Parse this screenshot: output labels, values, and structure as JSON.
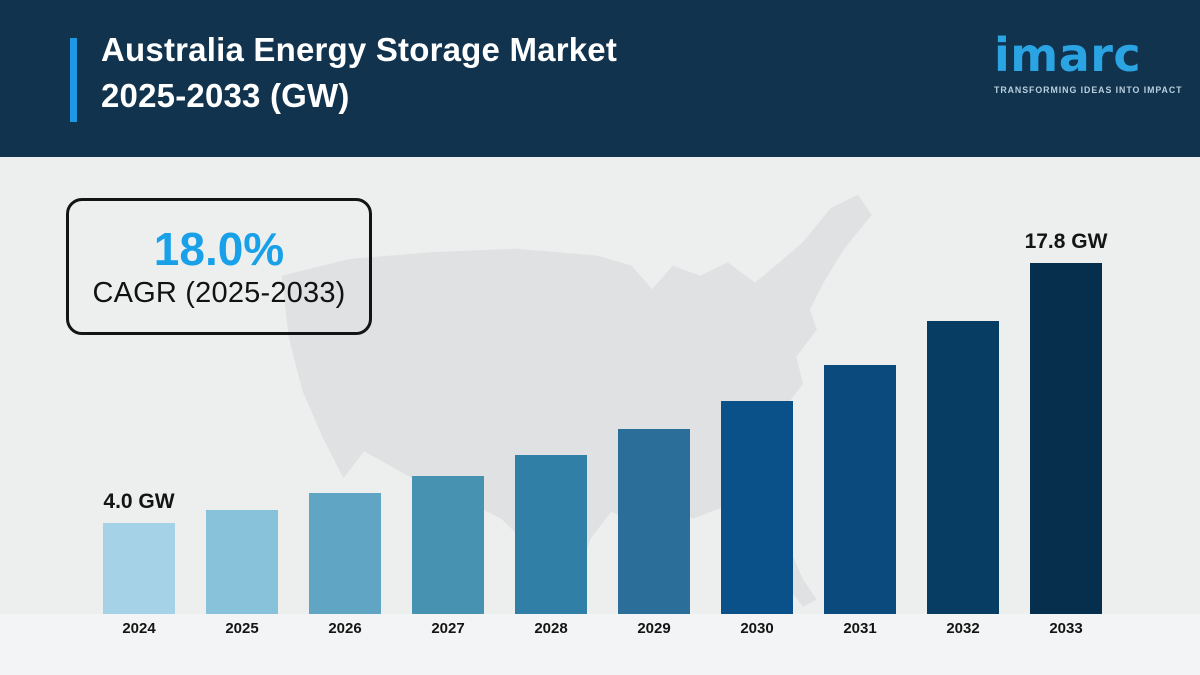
{
  "header": {
    "title_line1": "Australia Energy Storage Market",
    "title_line2": "2025-2033 (GW)",
    "logo": {
      "text": "imarc",
      "tagline": "TRANSFORMING IDEAS INTO IMPACT"
    }
  },
  "cagr_box": {
    "value": "18.0%",
    "label": "CAGR (2025-2033)"
  },
  "chart_data": {
    "type": "bar",
    "title": "Australia Energy Storage Market 2025-2033 (GW)",
    "unit": "GW",
    "categories": [
      "2024",
      "2025",
      "2026",
      "2027",
      "2028",
      "2029",
      "2030",
      "2031",
      "2032",
      "2033"
    ],
    "values": [
      4.0,
      4.7,
      5.6,
      6.5,
      7.6,
      9.0,
      10.5,
      12.4,
      14.7,
      17.8
    ],
    "labeled_points": {
      "2024": "4.0 GW",
      "2033": "17.8 GW"
    },
    "bar_colors": [
      "#a5d2e6",
      "#87c2da",
      "#61a5c4",
      "#4792b1",
      "#2f7fa6",
      "#2a6e99",
      "#0a5189",
      "#0a4a7d",
      "#073c63",
      "#062f4e"
    ],
    "xlabel": "",
    "ylabel": "",
    "ylim": [
      0,
      18
    ],
    "grid": false,
    "legend": false,
    "background": "usa-map-silhouette"
  },
  "colors": {
    "header_bg": "#11334d",
    "accent_blue": "#1e97e4",
    "cagr_blue": "#18a0e8",
    "logo_blue": "#2ba4e4",
    "page_bg": "#edefef",
    "map_gray": "#dfe1e2",
    "text_dark": "#141414"
  }
}
